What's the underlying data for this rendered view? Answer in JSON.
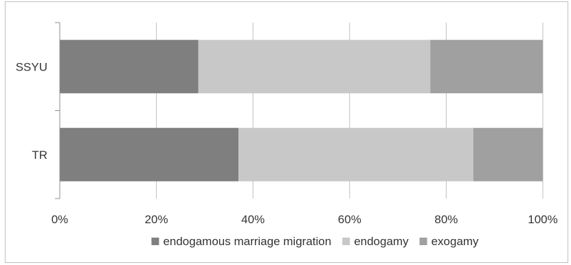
{
  "chart_data": {
    "type": "bar",
    "orientation": "horizontal",
    "stacked": "percent",
    "categories": [
      "SSYU",
      "TR"
    ],
    "series": [
      {
        "name": "endogamous marriage migration",
        "values": [
          28.7,
          37.0
        ],
        "color": "#7f7f7f"
      },
      {
        "name": "endogamy",
        "values": [
          48.0,
          48.6
        ],
        "color": "#c8c8c8"
      },
      {
        "name": "exogamy",
        "values": [
          23.3,
          14.4
        ],
        "color": "#a0a0a0"
      }
    ],
    "xlim": [
      0,
      100
    ],
    "x_ticks": [
      "0%",
      "20%",
      "40%",
      "60%",
      "80%",
      "100%"
    ],
    "grid": "vertical",
    "legend_position": "bottom"
  }
}
